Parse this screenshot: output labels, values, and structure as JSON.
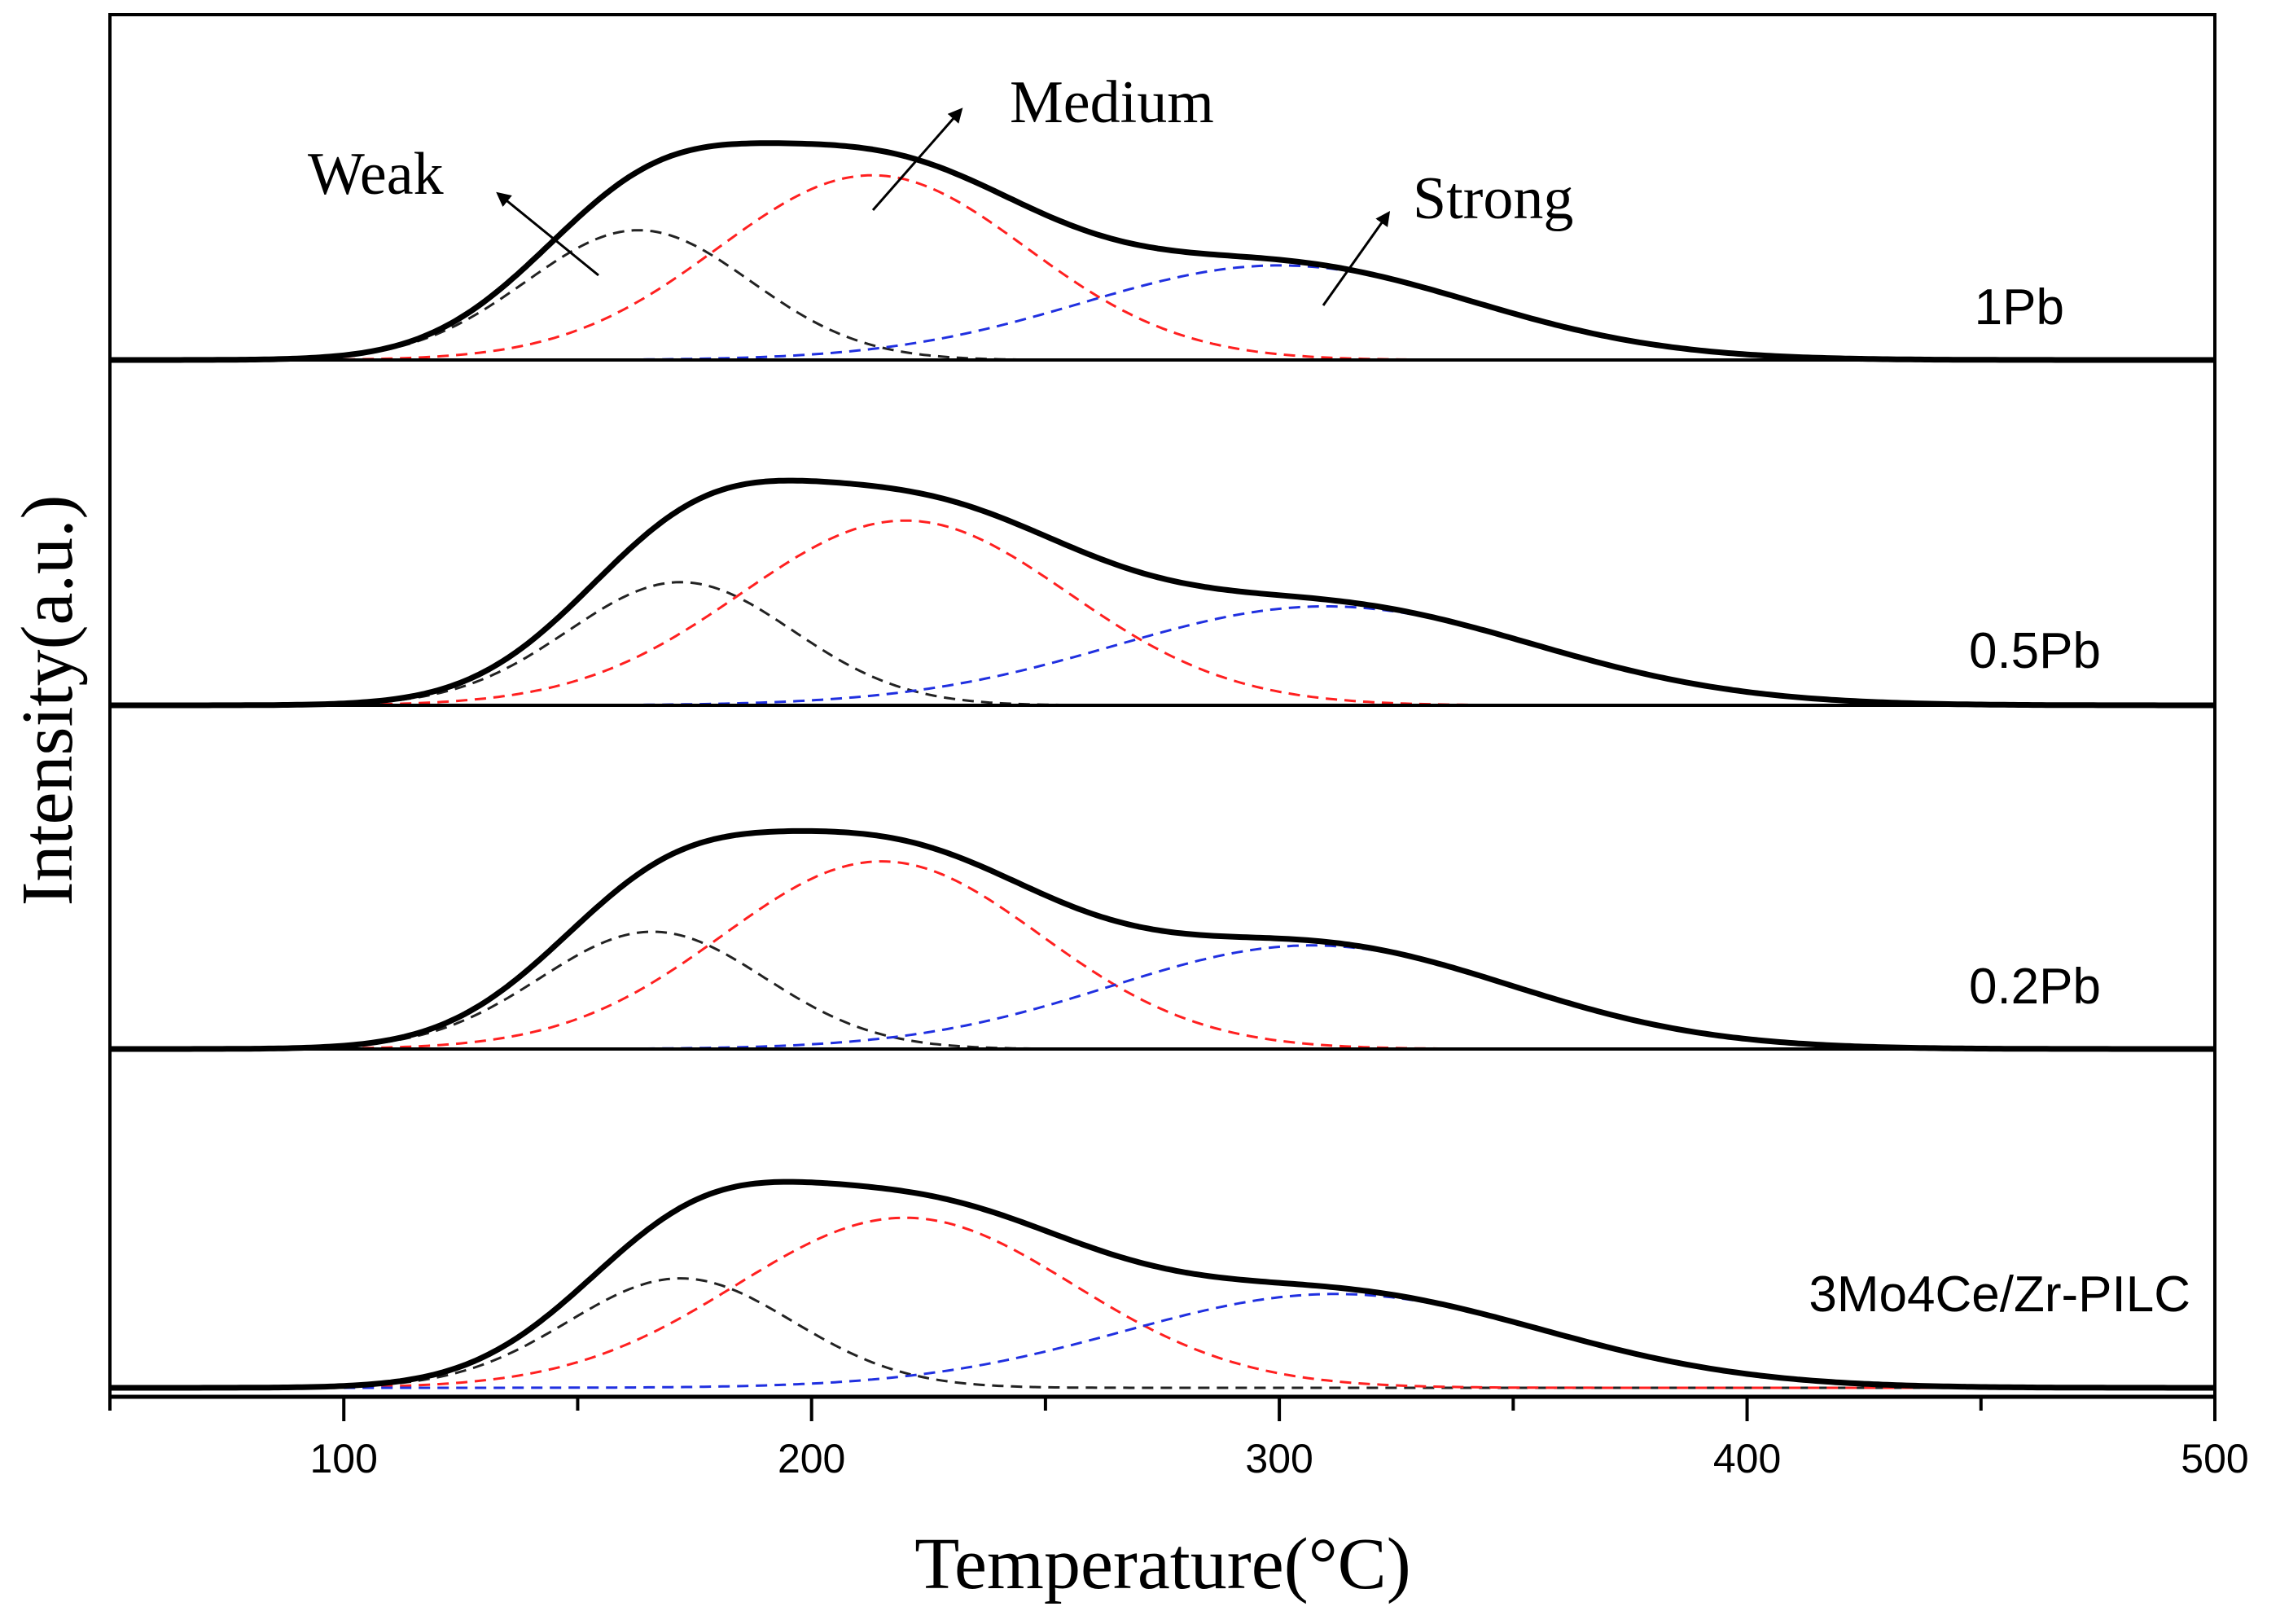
{
  "chart_data": {
    "type": "line",
    "title": "",
    "xlabel": "Temperature(°C)",
    "ylabel": "Intensity(a.u.)",
    "xlim": [
      50,
      500
    ],
    "xticks": [
      100,
      200,
      300,
      400,
      500
    ],
    "xtick_labels": [
      "100",
      "200",
      "300",
      "400",
      "500"
    ],
    "y_units": "a.u. (arbitrary, each panel normalized 0-1)",
    "panels": [
      {
        "name": "1Pb",
        "label": "1Pb",
        "baseline": 0,
        "series": [
          {
            "name": "Total",
            "style": "solid",
            "color": "#000000"
          },
          {
            "name": "Weak",
            "style": "dashed",
            "color": "#222222",
            "center": 163,
            "height": 0.59,
            "width": 24
          },
          {
            "name": "Medium",
            "style": "dashed",
            "color": "#ff2020",
            "center": 213,
            "height": 0.84,
            "width": 33
          },
          {
            "name": "Strong",
            "style": "dashed",
            "color": "#2030e0",
            "center": 300,
            "height": 0.43,
            "width": 42
          }
        ]
      },
      {
        "name": "0.5Pb",
        "label": "0.5Pb",
        "baseline": 0,
        "series": [
          {
            "name": "Total",
            "style": "solid",
            "color": "#000000"
          },
          {
            "name": "Weak",
            "style": "dashed",
            "color": "#222222",
            "center": 172,
            "height": 0.56,
            "width": 24
          },
          {
            "name": "Medium",
            "style": "dashed",
            "color": "#ff2020",
            "center": 220,
            "height": 0.84,
            "width": 35
          },
          {
            "name": "Strong",
            "style": "dashed",
            "color": "#2030e0",
            "center": 310,
            "height": 0.45,
            "width": 45
          }
        ]
      },
      {
        "name": "0.2Pb",
        "label": "0.2Pb",
        "baseline": 0,
        "series": [
          {
            "name": "Total",
            "style": "solid",
            "color": "#000000"
          },
          {
            "name": "Weak",
            "style": "dashed",
            "color": "#222222",
            "center": 166,
            "height": 0.6,
            "width": 24
          },
          {
            "name": "Medium",
            "style": "dashed",
            "color": "#ff2020",
            "center": 215,
            "height": 0.96,
            "width": 34
          },
          {
            "name": "Strong",
            "style": "dashed",
            "color": "#2030e0",
            "center": 307,
            "height": 0.53,
            "width": 43
          }
        ]
      },
      {
        "name": "3Mo4Ce/Zr-PILC",
        "label": "3Mo4Ce/Zr-PILC",
        "baseline": 0,
        "series": [
          {
            "name": "Total",
            "style": "solid",
            "color": "#000000"
          },
          {
            "name": "Weak",
            "style": "dashed",
            "color": "#222222",
            "center": 172,
            "height": 0.56,
            "width": 24
          },
          {
            "name": "Medium",
            "style": "dashed",
            "color": "#ff2020",
            "center": 220,
            "height": 0.87,
            "width": 36
          },
          {
            "name": "Strong",
            "style": "dashed",
            "color": "#2030e0",
            "center": 312,
            "height": 0.48,
            "width": 45
          }
        ]
      }
    ],
    "annotations": [
      {
        "text": "Weak",
        "target": "Weak peak (1Pb)"
      },
      {
        "text": "Medium",
        "target": "Medium peak (1Pb)"
      },
      {
        "text": "Strong",
        "target": "Strong peak (1Pb)"
      }
    ]
  }
}
